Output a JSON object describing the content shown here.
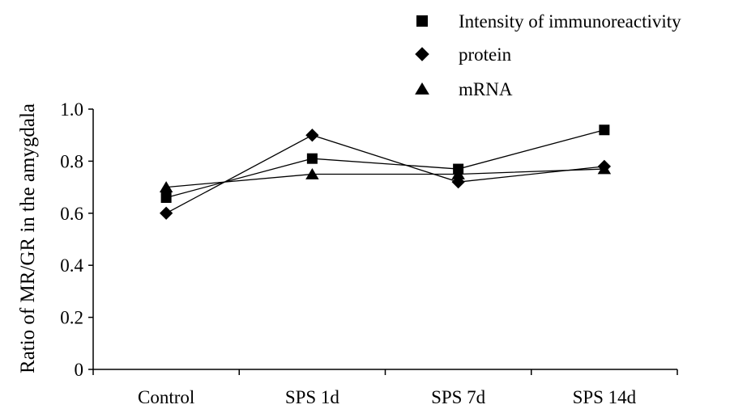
{
  "chart_data": {
    "type": "line",
    "title": "",
    "xlabel": "",
    "ylabel": "Ratio of MR/GR in the amygdala",
    "categories": [
      "Control",
      "SPS 1d",
      "SPS 7d",
      "SPS 14d"
    ],
    "ylim": [
      0,
      1.0
    ],
    "yticks": [
      "0",
      "0.2",
      "0.4",
      "0.6",
      "0.8",
      "1.0"
    ],
    "grid": false,
    "legend_position": "top-right",
    "series": [
      {
        "name": "Intensity of immunoreactivity",
        "marker": "square",
        "color": "#000000",
        "values": [
          0.66,
          0.81,
          0.77,
          0.92
        ]
      },
      {
        "name": "protein",
        "marker": "diamond",
        "color": "#000000",
        "values": [
          0.6,
          0.9,
          0.72,
          0.78
        ]
      },
      {
        "name": "mRNA",
        "marker": "triangle",
        "color": "#000000",
        "values": [
          0.7,
          0.75,
          0.75,
          0.77
        ]
      }
    ]
  }
}
